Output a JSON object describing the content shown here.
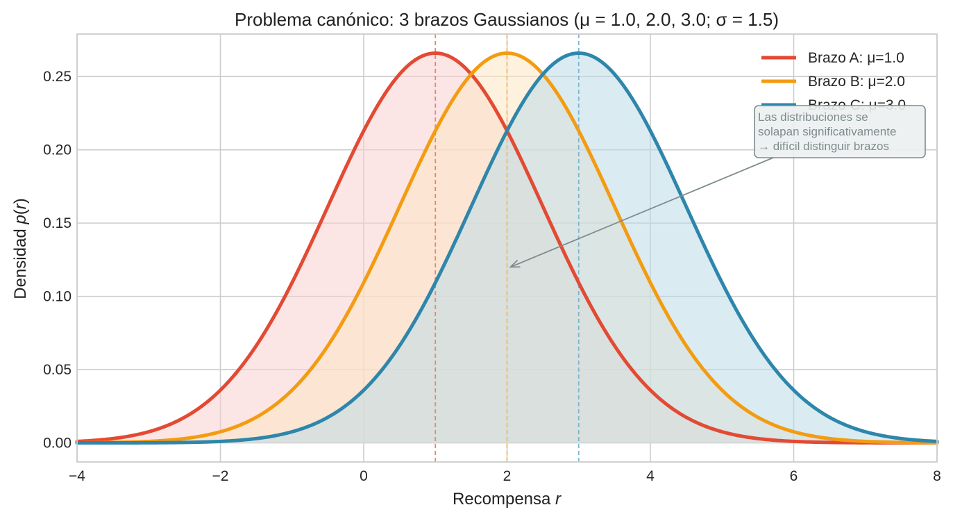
{
  "chart_data": {
    "type": "line",
    "title": "Problema canónico: 3 brazos Gaussianos (μ = 1.0, 2.0, 3.0;  σ = 1.5)",
    "xlabel_text": "Recompensa ",
    "xlabel_var": "r",
    "ylabel_text": "Densidad ",
    "ylabel_var": "p",
    "ylabel_paren_open": "(",
    "ylabel_paren_close": ")",
    "ylabel_inner_var": "r",
    "xlim": [
      -4,
      8
    ],
    "ylim": [
      -0.013,
      0.279
    ],
    "x_ticks": [
      -4,
      -2,
      0,
      2,
      4,
      6,
      8
    ],
    "x_tick_labels": [
      "−4",
      "−2",
      "0",
      "2",
      "4",
      "6",
      "8"
    ],
    "y_ticks": [
      0.0,
      0.05,
      0.1,
      0.15,
      0.2,
      0.25
    ],
    "y_tick_labels": [
      "0.00",
      "0.05",
      "0.10",
      "0.15",
      "0.20",
      "0.25"
    ],
    "grid": true,
    "legend_position": "top-right",
    "series": [
      {
        "name": "Brazo A: μ=1.0",
        "mu": 1.0,
        "sigma": 1.5,
        "color": "#e34a33",
        "fill": "#f8cfcf",
        "vline_color": "#f0826e"
      },
      {
        "name": "Brazo B: μ=2.0",
        "mu": 2.0,
        "sigma": 1.5,
        "color": "#f39c12",
        "fill": "#fde8c4",
        "vline_color": "#f5b865"
      },
      {
        "name": "Brazo C: μ=3.0",
        "mu": 3.0,
        "sigma": 1.5,
        "color": "#2e86ab",
        "fill": "#bcdbe8",
        "vline_color": "#7fb5cf"
      }
    ],
    "annotation": {
      "lines": [
        "Las distribuciones se",
        "solapan significativamente",
        "→ difícil distinguir brazos"
      ],
      "arrow_target": [
        2.0,
        0.12
      ],
      "text_anchor": [
        5.5,
        0.21
      ],
      "text_color": "#7f8c8d",
      "box_fill": "#ecf0f1",
      "box_edge": "#7f8c8d"
    }
  }
}
